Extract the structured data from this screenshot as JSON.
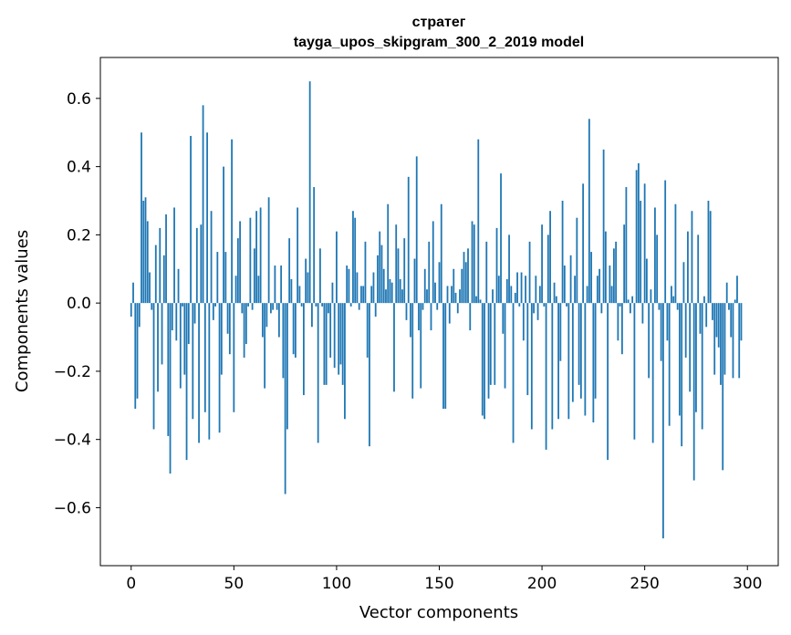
{
  "chart_data": {
    "type": "bar",
    "title": "стратег",
    "subtitle": "tayga_upos_skipgram_300_2_2019 model",
    "xlabel": "Vector components",
    "ylabel": "Components values",
    "xlim": [
      -15,
      315
    ],
    "ylim": [
      -0.77,
      0.72
    ],
    "xticks": [
      0,
      50,
      100,
      150,
      200,
      250,
      300
    ],
    "yticks": [
      -0.6,
      -0.4,
      -0.2,
      0.0,
      0.2,
      0.4,
      0.6
    ],
    "xtick_labels": [
      "0",
      "50",
      "100",
      "150",
      "200",
      "250",
      "300"
    ],
    "ytick_labels": [
      "−0.6",
      "−0.4",
      "−0.2",
      "0.0",
      "0.2",
      "0.4",
      "0.6"
    ],
    "grid": false,
    "bar_color": "#1f77b4",
    "series": [
      {
        "values": [
          -0.04,
          0.06,
          -0.31,
          -0.28,
          -0.07,
          0.5,
          0.3,
          0.31,
          0.24,
          0.09,
          -0.02,
          -0.37,
          0.17,
          -0.26,
          0.22,
          -0.18,
          0.14,
          0.26,
          -0.39,
          -0.5,
          -0.08,
          0.28,
          -0.11,
          0.1,
          -0.25,
          -0.01,
          -0.21,
          -0.46,
          -0.12,
          0.49,
          -0.34,
          -0.06,
          0.22,
          -0.41,
          0.23,
          0.58,
          -0.32,
          0.5,
          -0.4,
          0.27,
          -0.05,
          -0.01,
          0.15,
          -0.38,
          -0.21,
          0.4,
          0.15,
          -0.09,
          -0.15,
          0.48,
          -0.32,
          0.08,
          0.19,
          0.24,
          -0.03,
          -0.16,
          -0.12,
          -0.01,
          0.25,
          -0.02,
          0.16,
          0.27,
          0.08,
          0.28,
          -0.1,
          -0.25,
          -0.07,
          0.31,
          -0.03,
          -0.02,
          0.11,
          -0.02,
          -0.1,
          0.11,
          -0.22,
          -0.56,
          -0.37,
          0.19,
          0.07,
          -0.15,
          -0.16,
          0.28,
          0.05,
          -0.01,
          -0.27,
          0.13,
          0.09,
          0.65,
          -0.07,
          0.34,
          -0.01,
          -0.41,
          0.16,
          -0.01,
          -0.24,
          -0.24,
          -0.03,
          -0.16,
          0.06,
          -0.19,
          0.21,
          -0.21,
          -0.18,
          -0.24,
          -0.34,
          0.11,
          0.1,
          -0.01,
          0.27,
          0.25,
          0.09,
          -0.02,
          0.05,
          0.05,
          0.18,
          -0.16,
          -0.42,
          0.05,
          0.09,
          -0.04,
          0.14,
          0.21,
          0.17,
          0.1,
          0.04,
          0.29,
          0.07,
          0.06,
          -0.26,
          0.23,
          0.16,
          0.07,
          0.04,
          0.19,
          -0.05,
          0.37,
          -0.1,
          -0.28,
          0.13,
          0.43,
          -0.08,
          -0.25,
          -0.02,
          0.1,
          0.04,
          0.18,
          -0.08,
          0.24,
          0.06,
          -0.02,
          0.12,
          0.29,
          -0.31,
          -0.31,
          0.05,
          -0.06,
          0.05,
          0.1,
          0.03,
          -0.03,
          0.04,
          0.1,
          0.15,
          0.12,
          0.16,
          -0.08,
          0.24,
          0.23,
          0.02,
          0.48,
          0.01,
          -0.33,
          -0.34,
          0.18,
          -0.28,
          -0.24,
          0.04,
          -0.24,
          0.22,
          0.08,
          0.38,
          -0.09,
          -0.25,
          0.07,
          0.2,
          0.05,
          -0.41,
          0.03,
          0.09,
          -0.01,
          0.09,
          -0.11,
          0.08,
          -0.27,
          0.18,
          -0.37,
          -0.03,
          0.08,
          -0.05,
          0.05,
          0.23,
          -0.01,
          -0.43,
          0.2,
          0.27,
          -0.37,
          0.06,
          0.02,
          -0.34,
          -0.17,
          0.3,
          0.11,
          -0.01,
          -0.34,
          0.14,
          -0.29,
          0.08,
          0.25,
          -0.24,
          -0.28,
          0.35,
          -0.33,
          0.05,
          0.54,
          0.15,
          -0.35,
          -0.28,
          0.08,
          0.1,
          -0.03,
          0.45,
          0.21,
          -0.46,
          0.11,
          0.05,
          0.16,
          0.18,
          -0.11,
          -0.01,
          -0.15,
          0.23,
          0.34,
          0.01,
          -0.03,
          0.02,
          -0.4,
          0.39,
          0.41,
          0.3,
          -0.06,
          0.35,
          0.13,
          -0.22,
          0.04,
          -0.41,
          0.28,
          0.2,
          -0.02,
          -0.17,
          -0.69,
          0.36,
          -0.11,
          -0.36,
          0.05,
          0.02,
          0.29,
          -0.02,
          -0.33,
          -0.42,
          0.12,
          -0.16,
          0.21,
          -0.26,
          0.27,
          -0.52,
          -0.32,
          0.2,
          -0.09,
          -0.37,
          0.02,
          -0.07,
          0.3,
          0.27,
          -0.05,
          -0.21,
          -0.1,
          -0.13,
          -0.24,
          -0.49,
          -0.21,
          0.06,
          -0.02,
          -0.1,
          -0.22,
          0.01,
          0.08,
          -0.22,
          -0.11
        ]
      }
    ]
  }
}
